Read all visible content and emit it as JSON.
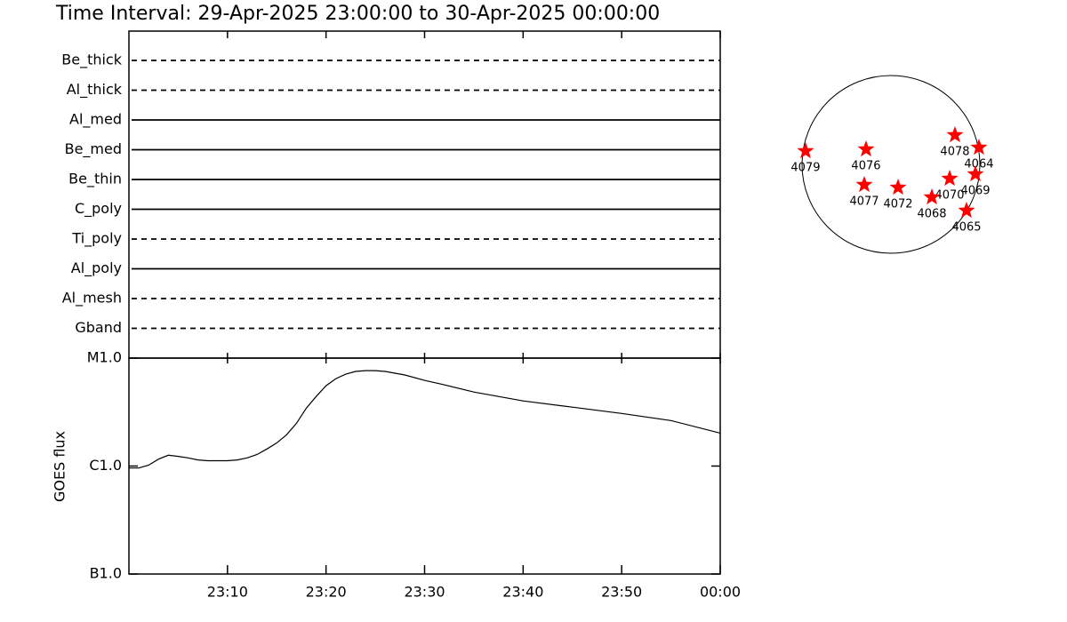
{
  "chart_data": [
    {
      "type": "timeline",
      "title": "Time Interval: 29-Apr-2025 23:00:00 to 30-Apr-2025 00:00:00",
      "rows": [
        {
          "name": "Be_thick",
          "style": "dashed"
        },
        {
          "name": "Al_thick",
          "style": "dashed"
        },
        {
          "name": "Al_med",
          "style": "solid"
        },
        {
          "name": "Be_med",
          "style": "solid"
        },
        {
          "name": "Be_thin",
          "style": "solid"
        },
        {
          "name": "C_poly",
          "style": "solid"
        },
        {
          "name": "Ti_poly",
          "style": "dashed"
        },
        {
          "name": "Al_poly",
          "style": "solid"
        },
        {
          "name": "Al_mesh",
          "style": "dashed"
        },
        {
          "name": "Gband",
          "style": "dashed"
        }
      ]
    },
    {
      "type": "line",
      "ylabel": "GOES flux",
      "color": "#000000",
      "log_scale": true,
      "xlim": [
        "23:00",
        "00:00"
      ],
      "xticks": [
        "23:10",
        "23:20",
        "23:30",
        "23:40",
        "23:50",
        "00:00"
      ],
      "ylim": [
        1e-07,
        1e-05
      ],
      "yticks": [
        {
          "value": 1e-07,
          "label": "B1.0"
        },
        {
          "value": 1e-06,
          "label": "C1.0"
        },
        {
          "value": 1e-05,
          "label": "M1.0"
        }
      ],
      "x": [
        "23:00",
        "23:01",
        "23:02",
        "23:03",
        "23:04",
        "23:05",
        "23:06",
        "23:07",
        "23:08",
        "23:09",
        "23:10",
        "23:11",
        "23:12",
        "23:13",
        "23:14",
        "23:15",
        "23:16",
        "23:17",
        "23:18",
        "23:19",
        "23:20",
        "23:21",
        "23:22",
        "23:23",
        "23:24",
        "23:25",
        "23:26",
        "23:27",
        "23:28",
        "23:30",
        "23:32",
        "23:35",
        "23:40",
        "23:45",
        "23:50",
        "23:55",
        "00:00"
      ],
      "values": [
        9.6e-07,
        9.6e-07,
        1.02e-06,
        1.16e-06,
        1.26e-06,
        1.23e-06,
        1.19e-06,
        1.14e-06,
        1.12e-06,
        1.12e-06,
        1.12e-06,
        1.14e-06,
        1.19e-06,
        1.28e-06,
        1.44e-06,
        1.64e-06,
        1.95e-06,
        2.49e-06,
        3.44e-06,
        4.41e-06,
        5.55e-06,
        6.46e-06,
        7.1e-06,
        7.52e-06,
        7.66e-06,
        7.66e-06,
        7.52e-06,
        7.24e-06,
        6.97e-06,
        6.21e-06,
        5.65e-06,
        4.85e-06,
        4.01e-06,
        3.51e-06,
        3.07e-06,
        2.64e-06,
        2.02e-06
      ]
    },
    {
      "type": "disk",
      "disk_radius": 960,
      "color": "#ff0000",
      "points": [
        {
          "name": "4079",
          "x": -922,
          "y": 144
        },
        {
          "name": "4076",
          "x": -269,
          "y": 163
        },
        {
          "name": "4078",
          "x": 691,
          "y": 317
        },
        {
          "name": "4064",
          "x": 950,
          "y": 182
        },
        {
          "name": "4070",
          "x": 634,
          "y": -154
        },
        {
          "name": "4069",
          "x": 912,
          "y": -106
        },
        {
          "name": "4077",
          "x": -288,
          "y": -221
        },
        {
          "name": "4072",
          "x": 77,
          "y": -250
        },
        {
          "name": "4068",
          "x": 442,
          "y": -355
        },
        {
          "name": "4065",
          "x": 816,
          "y": -499
        }
      ]
    }
  ]
}
